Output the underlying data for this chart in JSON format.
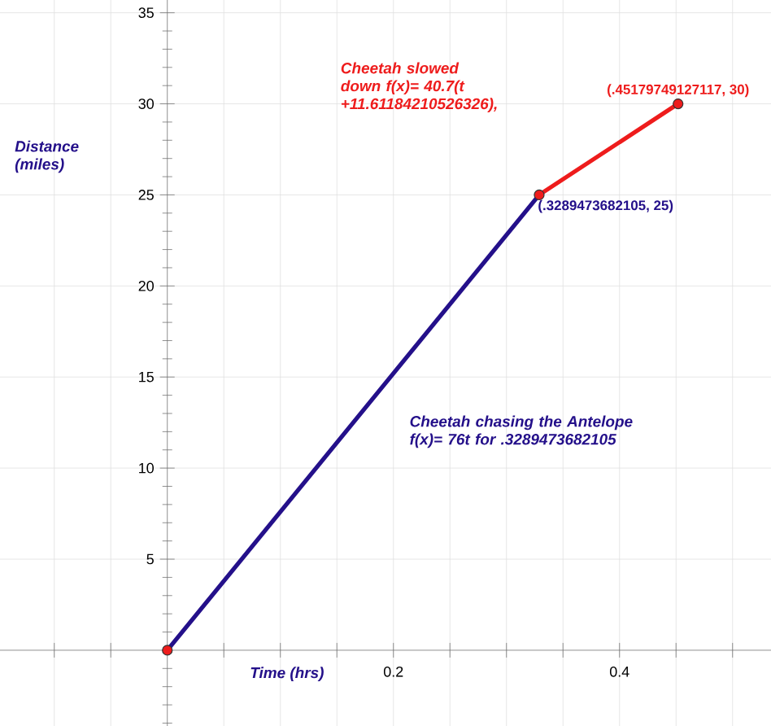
{
  "chart_data": {
    "type": "line",
    "xlabel": "Time (hrs)",
    "ylabel": "Distance (miles)",
    "xlim": [
      -0.148,
      0.534
    ],
    "ylim": [
      -4.16,
      35.7
    ],
    "xticks": [
      {
        "value": -0.1,
        "label": null
      },
      {
        "value": -0.05,
        "label": null
      },
      {
        "value": 0,
        "label": null
      },
      {
        "value": 0.05,
        "label": null
      },
      {
        "value": 0.1,
        "label": null
      },
      {
        "value": 0.15,
        "label": null
      },
      0.2,
      {
        "value": 0.25,
        "label": null
      },
      {
        "value": 0.3,
        "label": null
      },
      {
        "value": 0.35,
        "label": null
      },
      0.4,
      {
        "value": 0.45,
        "label": null
      },
      {
        "value": 0.5,
        "label": null
      }
    ],
    "yticks": [
      {
        "value": -4,
        "label": null
      },
      {
        "value": -3,
        "label": null
      },
      {
        "value": -2,
        "label": null
      },
      {
        "value": -1,
        "label": null
      },
      {
        "value": 0,
        "label": null
      },
      {
        "value": 1,
        "label": null
      },
      {
        "value": 2,
        "label": null
      },
      {
        "value": 3,
        "label": null
      },
      {
        "value": 4,
        "label": null
      },
      5,
      {
        "value": 6,
        "label": null
      },
      {
        "value": 7,
        "label": null
      },
      {
        "value": 8,
        "label": null
      },
      {
        "value": 9,
        "label": null
      },
      10,
      {
        "value": 11,
        "label": null
      },
      {
        "value": 12,
        "label": null
      },
      {
        "value": 13,
        "label": null
      },
      {
        "value": 14,
        "label": null
      },
      15,
      {
        "value": 16,
        "label": null
      },
      {
        "value": 17,
        "label": null
      },
      {
        "value": 18,
        "label": null
      },
      {
        "value": 19,
        "label": null
      },
      20,
      {
        "value": 21,
        "label": null
      },
      {
        "value": 22,
        "label": null
      },
      {
        "value": 23,
        "label": null
      },
      {
        "value": 24,
        "label": null
      },
      25,
      {
        "value": 26,
        "label": null
      },
      {
        "value": 27,
        "label": null
      },
      {
        "value": 28,
        "label": null
      },
      {
        "value": 29,
        "label": null
      },
      30,
      {
        "value": 31,
        "label": null
      },
      {
        "value": 32,
        "label": null
      },
      {
        "value": 33,
        "label": null
      },
      {
        "value": 34,
        "label": null
      },
      35
    ],
    "grid": true,
    "series": [
      {
        "color": "#24108a",
        "x": [
          0,
          0.3289473682105
        ],
        "values": [
          0,
          25
        ],
        "marker": "none"
      },
      {
        "color": "#ee1c1c",
        "x": [
          0.3289473682105,
          0.45179749127117
        ],
        "values": [
          25,
          30
        ],
        "marker": "none"
      },
      {
        "type": "scatter",
        "color": "#ee1c1c",
        "x": [
          0,
          0.3289473682105,
          0.45179749127117
        ],
        "values": [
          0,
          25,
          30
        ],
        "marker": "circle"
      }
    ],
    "annotations": [
      "Cheetah slowed down f(x)= 40.7(t +11.61184210526326),",
      "Cheetah chasing the Antelope f(x)= 76t for .3289473682105",
      {
        "text": "(.45179749127117, 30)",
        "x": 0.45179749127117,
        "y": 30
      },
      {
        "text": "(.3289473682105, 25)",
        "x": 0.3289473682105,
        "y": 25
      }
    ]
  }
}
